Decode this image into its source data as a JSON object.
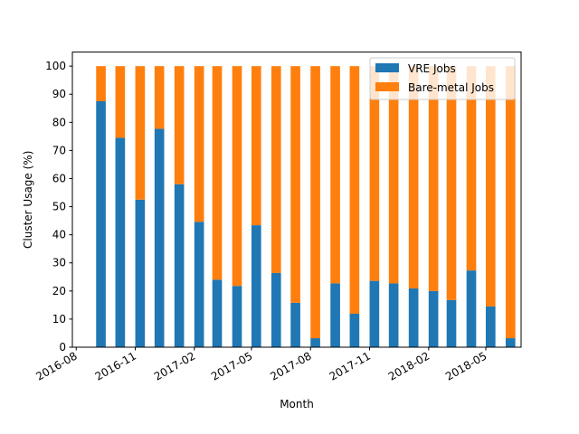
{
  "chart_data": {
    "type": "bar",
    "stacked": true,
    "xlabel": "Month",
    "ylabel": "Cluster Usage (%)",
    "ylim": [
      0,
      105
    ],
    "yticks": [
      0,
      10,
      20,
      30,
      40,
      50,
      60,
      70,
      80,
      90,
      100
    ],
    "xlim": [
      "2016-07-26",
      "2018-06-25"
    ],
    "xticks": [
      "2016-08",
      "2016-11",
      "2017-02",
      "2017-05",
      "2017-08",
      "2017-11",
      "2018-02",
      "2018-05"
    ],
    "x": [
      "2016-09-01",
      "2016-10-01",
      "2016-11-01",
      "2016-12-01",
      "2017-01-01",
      "2017-02-01",
      "2017-03-01",
      "2017-04-01",
      "2017-05-01",
      "2017-06-01",
      "2017-07-01",
      "2017-08-01",
      "2017-09-01",
      "2017-10-01",
      "2017-11-01",
      "2017-12-01",
      "2018-01-01",
      "2018-02-01",
      "2018-03-01",
      "2018-04-01",
      "2018-05-01",
      "2018-06-01"
    ],
    "series": [
      {
        "name": "VRE Jobs",
        "color": "#1f77b4",
        "values": [
          87.5,
          74.5,
          52.5,
          77.7,
          58.0,
          44.6,
          24.0,
          21.8,
          43.4,
          26.4,
          15.8,
          3.2,
          22.7,
          11.9,
          23.6,
          22.7,
          20.9,
          20.0,
          16.8,
          27.3,
          14.5,
          3.2
        ]
      },
      {
        "name": "Bare-metal Jobs",
        "color": "#ff7f0e",
        "values": [
          12.5,
          25.5,
          47.5,
          22.3,
          42.0,
          55.4,
          76.0,
          78.2,
          56.6,
          73.6,
          84.2,
          96.8,
          77.3,
          88.1,
          76.4,
          77.3,
          79.1,
          80.0,
          83.2,
          72.7,
          85.5,
          96.8
        ]
      }
    ],
    "legend_position": "top-right",
    "grid": false
  }
}
